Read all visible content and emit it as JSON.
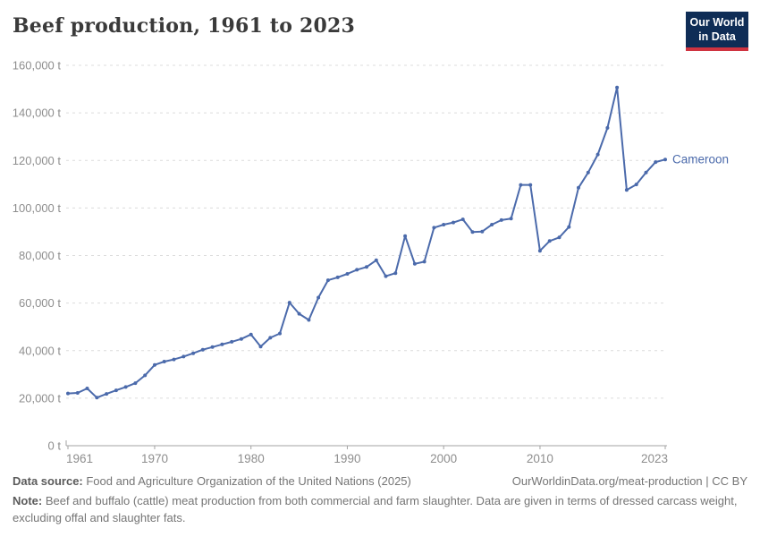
{
  "header": {
    "title": "Beef production, 1961 to 2023",
    "logo": {
      "line1": "Our World",
      "line2": "in Data"
    }
  },
  "chart_data": {
    "type": "line",
    "title": "Beef production, 1961 to 2023",
    "unit": "t",
    "x": [
      1961,
      1962,
      1963,
      1964,
      1965,
      1966,
      1967,
      1968,
      1969,
      1970,
      1971,
      1972,
      1973,
      1974,
      1975,
      1976,
      1977,
      1978,
      1979,
      1980,
      1981,
      1982,
      1983,
      1984,
      1985,
      1986,
      1987,
      1988,
      1989,
      1990,
      1991,
      1992,
      1993,
      1994,
      1995,
      1996,
      1997,
      1998,
      1999,
      2000,
      2001,
      2002,
      2003,
      2004,
      2005,
      2006,
      2007,
      2008,
      2009,
      2010,
      2011,
      2012,
      2013,
      2014,
      2015,
      2016,
      2017,
      2018,
      2019,
      2020,
      2021,
      2022,
      2023
    ],
    "series": [
      {
        "name": "Cameroon",
        "color": "#4b6aab",
        "values": [
          22000,
          22200,
          24100,
          20200,
          21800,
          23300,
          24700,
          26300,
          29600,
          34000,
          35400,
          36300,
          37500,
          38900,
          40400,
          41500,
          42600,
          43700,
          44900,
          46800,
          41700,
          45400,
          47200,
          60200,
          55500,
          52900,
          62300,
          69600,
          70800,
          72300,
          74000,
          75200,
          78000,
          71300,
          72600,
          88200,
          76500,
          77400,
          91700,
          93000,
          93900,
          95200,
          89900,
          90100,
          93000,
          94900,
          95500,
          109700,
          109700,
          82000,
          86100,
          87600,
          92000,
          108500,
          114900,
          122500,
          133700,
          150700,
          107600,
          109900,
          114900,
          119300,
          120400
        ]
      }
    ],
    "entity_label": "Cameroon",
    "x_ticks": [
      1961,
      1970,
      1980,
      1990,
      2000,
      2010,
      2023
    ],
    "y_ticks": [
      0,
      20000,
      40000,
      60000,
      80000,
      100000,
      120000,
      140000,
      160000
    ],
    "y_tick_suffix": " t",
    "xlim": [
      1961,
      2023
    ],
    "ylim": [
      0,
      160000
    ],
    "grid": "horizontal-dashed",
    "legend_position": "end-of-line-label",
    "marker": "dot"
  },
  "colors": {
    "line": "#4b6aab",
    "grid": "#dcdcdc",
    "axis": "#a3a3a3",
    "tick_label": "#8e8e8e",
    "title": "#3a3a3a",
    "logo_bg": "#0f2d56",
    "logo_red": "#cf3340"
  },
  "footer": {
    "datasource_label": "Data source:",
    "datasource_text": " Food and Agriculture Organization of the United Nations (2025)",
    "link_text": "OurWorldinData.org/meat-production | CC BY",
    "note_label": "Note:",
    "note_text": " Beef and buffalo (cattle) meat production from both commercial and farm slaughter. Data are given in terms of dressed carcass weight, excluding offal and slaughter fats."
  }
}
